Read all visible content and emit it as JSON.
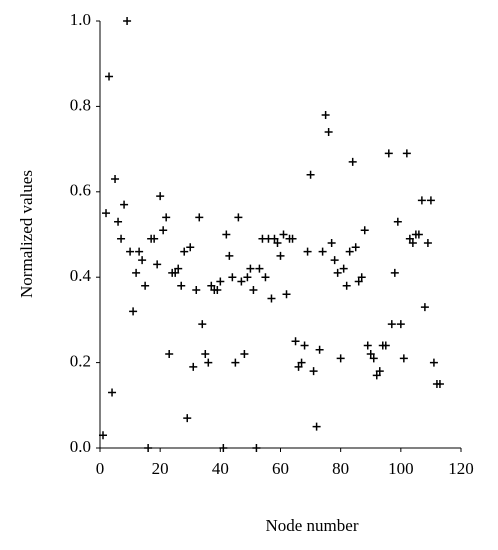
{
  "chart_data": {
    "type": "scatter",
    "x_label": "Node number",
    "y_label": "Normalized values",
    "x": [
      1,
      2,
      3,
      4,
      5,
      6,
      7,
      8,
      9,
      10,
      11,
      12,
      13,
      14,
      15,
      16,
      17,
      18,
      19,
      20,
      21,
      22,
      23,
      24,
      25,
      26,
      27,
      28,
      29,
      30,
      31,
      32,
      33,
      34,
      35,
      36,
      37,
      38,
      39,
      40,
      41,
      42,
      43,
      44,
      45,
      46,
      47,
      48,
      49,
      50,
      51,
      52,
      53,
      54,
      55,
      56,
      57,
      58,
      59,
      60,
      61,
      62,
      63,
      64,
      65,
      66,
      67,
      68,
      69,
      70,
      71,
      72,
      73,
      74,
      75,
      76,
      77,
      78,
      79,
      80,
      81,
      82,
      83,
      84,
      85,
      86,
      87,
      88,
      89,
      90,
      91,
      92,
      93,
      94,
      95,
      96,
      97,
      98,
      99,
      100,
      101,
      102,
      103,
      104,
      105,
      106,
      107,
      108,
      109,
      110,
      111,
      112,
      113
    ],
    "values": [
      0.03,
      0.55,
      0.87,
      0.13,
      0.63,
      0.53,
      0.49,
      0.57,
      1.0,
      0.46,
      0.32,
      0.41,
      0.46,
      0.44,
      0.38,
      0,
      0.49,
      0.49,
      0.43,
      0.59,
      0.51,
      0.54,
      0.22,
      0.41,
      0.41,
      0.42,
      0.38,
      0.46,
      0.07,
      0.47,
      0.19,
      0.37,
      0.54,
      0.29,
      0.22,
      0.2,
      0.38,
      0.37,
      0.37,
      0.39,
      0,
      0.5,
      0.45,
      0.4,
      0.2,
      0.54,
      0.39,
      0.22,
      0.4,
      0.42,
      0.37,
      0,
      0.42,
      0.49,
      0.4,
      0.49,
      0.35,
      0.49,
      0.48,
      0.45,
      0.5,
      0.36,
      0.49,
      0.49,
      0.25,
      0.19,
      0.2,
      0.24,
      0.46,
      0.64,
      0.18,
      0.05,
      0.23,
      0.46,
      0.78,
      0.74,
      0.48,
      0.44,
      0.41,
      0.21,
      0.42,
      0.38,
      0.46,
      0.67,
      0.47,
      0.39,
      0.4,
      0.51,
      0.24,
      0.22,
      0.21,
      0.17,
      0.18,
      0.24,
      0.24,
      0.69,
      0.29,
      0.41,
      0.53,
      0.29,
      0.21,
      0.69,
      0.49,
      0.48,
      0.5,
      0.5,
      0.58,
      0.33,
      0.48,
      0.58,
      0.2,
      0.15,
      0.15
    ],
    "color": "#000000",
    "xlim": [
      0,
      120
    ],
    "ylim": [
      0,
      1
    ],
    "xticks": [
      0,
      20,
      40,
      60,
      80,
      100,
      120
    ],
    "yticks": [
      {
        "value": 0,
        "label": "0.0"
      },
      {
        "value": 0.2,
        "label": "0.2"
      },
      {
        "value": 0.4,
        "label": "0.4"
      },
      {
        "value": 0.6,
        "label": "0.6"
      },
      {
        "value": 0.8,
        "label": "0.8"
      },
      {
        "value": 1,
        "label": "1.0"
      }
    ],
    "grid": false
  }
}
